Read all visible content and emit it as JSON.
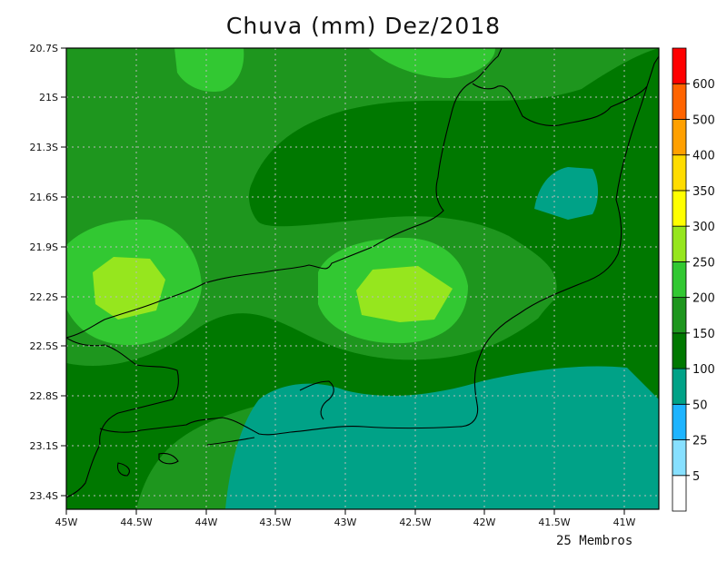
{
  "title": "Chuva (mm) Dez/2018",
  "footer": "25 Membros",
  "lat_labels": [
    "20.7S",
    "21S",
    "21.3S",
    "21.6S",
    "21.9S",
    "22.2S",
    "22.5S",
    "22.8S",
    "23.1S",
    "23.4S"
  ],
  "lon_labels": [
    "45W",
    "44.5W",
    "44W",
    "43.5W",
    "43W",
    "42.5W",
    "42W",
    "41.5W",
    "41W"
  ],
  "colorbar": {
    "ticks": [
      "5",
      "25",
      "50",
      "100",
      "150",
      "200",
      "250",
      "300",
      "350",
      "400",
      "500",
      "600"
    ],
    "colors": [
      "#ffffff",
      "#87e0ff",
      "#1eb4ff",
      "#00a287",
      "#007800",
      "#1e961e",
      "#32c832",
      "#96e61e",
      "#ffff00",
      "#ffdc00",
      "#ffa000",
      "#ff6400",
      "#ff0000"
    ]
  },
  "chart_data": {
    "type": "heatmap",
    "title": "Chuva (mm) Dez/2018",
    "variable": "Precipitation (mm)",
    "xlim": [
      -45,
      -40.75
    ],
    "ylim": [
      -23.5,
      -20.7
    ],
    "levels": [
      5,
      25,
      50,
      100,
      150,
      200,
      250,
      300,
      350,
      400,
      500,
      600
    ],
    "regions": [
      {
        "range": "50-100",
        "location": "coastal south / ocean south of Rio de Janeiro"
      },
      {
        "range": "50-100",
        "location": "small patch near 41.3W 21.7S"
      },
      {
        "range": "100-150",
        "location": "band 21S-21.9S and 22.5S-22.9S, east region"
      },
      {
        "range": "150-200",
        "location": "background north, west and east"
      },
      {
        "range": "200-250",
        "location": "around 44.6W 22.1S and 42.6W 22.2S"
      },
      {
        "range": "250-300",
        "location": "maxima near 44.6W 22.2S and 42.6W 22.2S"
      }
    ]
  }
}
